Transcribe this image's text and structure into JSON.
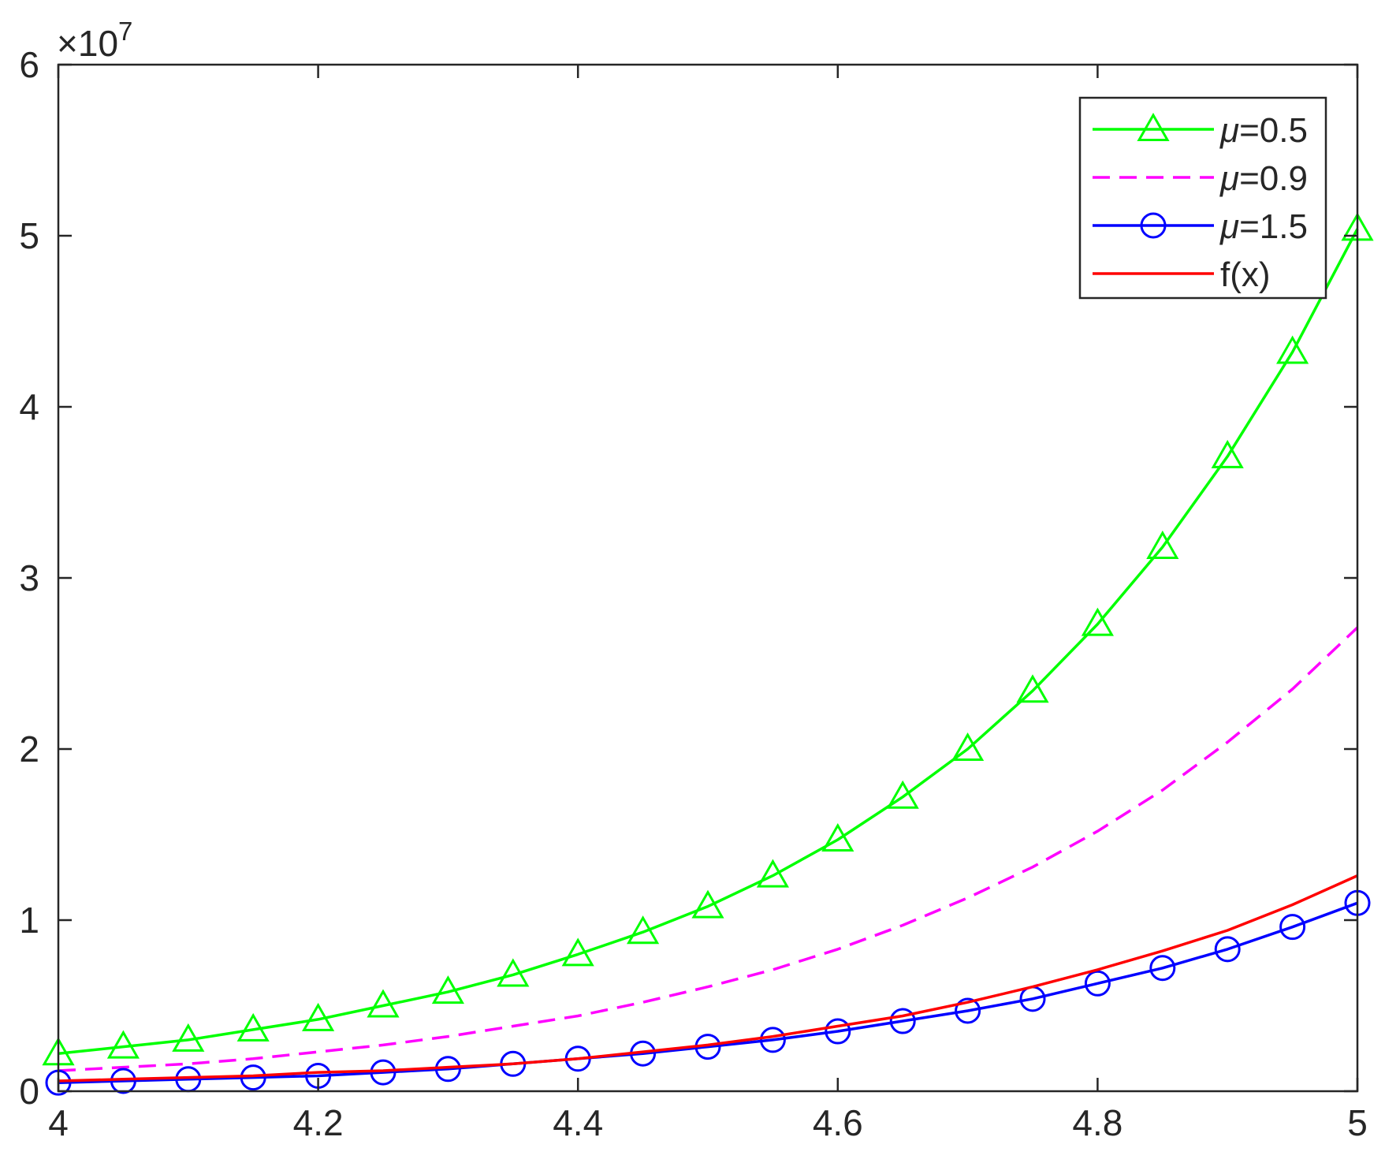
{
  "chart_data": {
    "type": "line",
    "title": "",
    "xlabel": "",
    "ylabel": "",
    "xlim": [
      4,
      5
    ],
    "ylim": [
      0,
      6
    ],
    "y_exponent_label": "×10",
    "y_exponent_power": "7",
    "x_ticks": [
      "4",
      "4.2",
      "4.4",
      "4.6",
      "4.8",
      "5"
    ],
    "x_tick_values": [
      4,
      4.2,
      4.4,
      4.6,
      4.8,
      5
    ],
    "y_ticks": [
      "0",
      "1",
      "2",
      "3",
      "4",
      "5",
      "6"
    ],
    "y_tick_values": [
      0,
      1,
      2,
      3,
      4,
      5,
      6
    ],
    "grid": false,
    "legend_position": "top-right",
    "x": [
      4.0,
      4.05,
      4.1,
      4.15,
      4.2,
      4.25,
      4.3,
      4.35,
      4.4,
      4.45,
      4.5,
      4.55,
      4.6,
      4.65,
      4.7,
      4.75,
      4.8,
      4.85,
      4.9,
      4.95,
      5.0
    ],
    "series": [
      {
        "name_prefix": "μ",
        "name_suffix": "=0.5",
        "color": "#00ff00",
        "line_style": "solid",
        "marker": "triangle",
        "values": [
          0.22,
          0.26,
          0.3,
          0.36,
          0.42,
          0.5,
          0.58,
          0.68,
          0.8,
          0.93,
          1.08,
          1.26,
          1.47,
          1.72,
          2.0,
          2.34,
          2.73,
          3.18,
          3.71,
          4.32,
          5.04
        ]
      },
      {
        "name_prefix": "μ",
        "name_suffix": "=0.9",
        "color": "#ff00ff",
        "line_style": "dashed",
        "marker": "none",
        "values": [
          0.12,
          0.14,
          0.16,
          0.19,
          0.23,
          0.27,
          0.32,
          0.38,
          0.44,
          0.52,
          0.61,
          0.71,
          0.83,
          0.97,
          1.13,
          1.31,
          1.52,
          1.76,
          2.04,
          2.35,
          2.71
        ]
      },
      {
        "name_prefix": "μ",
        "name_suffix": "=1.5",
        "color": "#0000ff",
        "line_style": "solid",
        "marker": "circle",
        "values": [
          0.05,
          0.06,
          0.07,
          0.08,
          0.09,
          0.11,
          0.13,
          0.16,
          0.19,
          0.22,
          0.26,
          0.3,
          0.35,
          0.41,
          0.47,
          0.54,
          0.63,
          0.72,
          0.83,
          0.96,
          1.1
        ]
      },
      {
        "name_prefix": "",
        "name_suffix": "f(x)",
        "color": "#ff0000",
        "line_style": "solid",
        "marker": "none",
        "values": [
          0.06,
          0.07,
          0.08,
          0.09,
          0.11,
          0.12,
          0.14,
          0.16,
          0.19,
          0.23,
          0.27,
          0.32,
          0.38,
          0.44,
          0.52,
          0.61,
          0.71,
          0.82,
          0.94,
          1.09,
          1.26
        ]
      }
    ]
  }
}
